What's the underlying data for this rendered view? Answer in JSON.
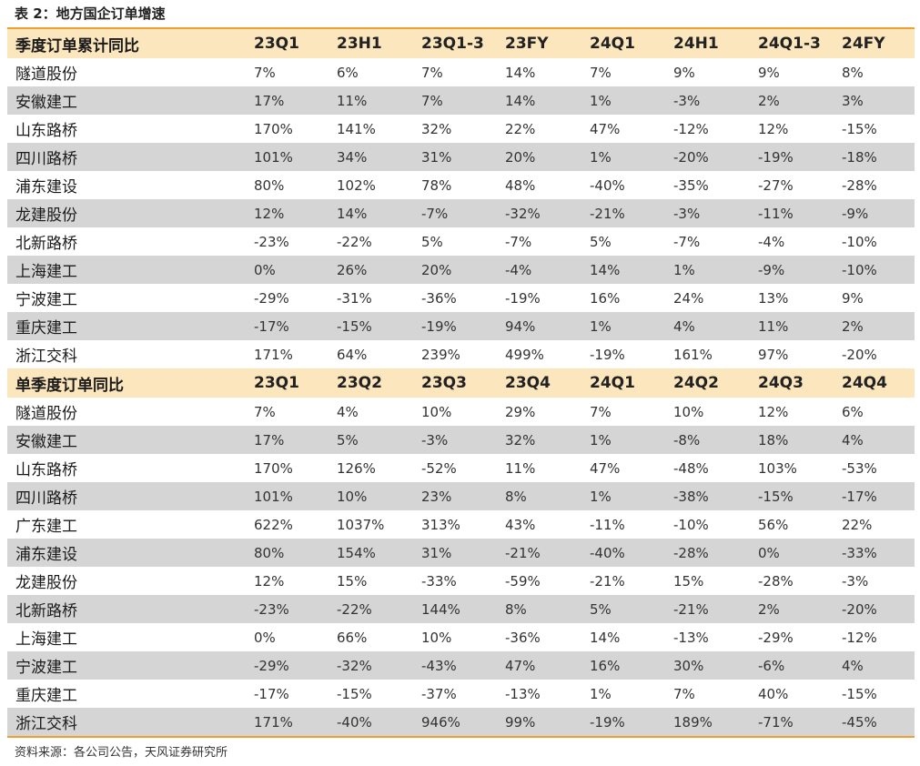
{
  "caption": "表 2：地方国企订单增速",
  "source": "资料来源：各公司公告，天风证券研究所",
  "sections": [
    {
      "header": [
        "季度订单累计同比",
        "23Q1",
        "23H1",
        "23Q1-3",
        "23FY",
        "24Q1",
        "24H1",
        "24Q1-3",
        "24FY"
      ],
      "rows": [
        [
          "隧道股份",
          "7%",
          "6%",
          "7%",
          "14%",
          "7%",
          "9%",
          "9%",
          "8%"
        ],
        [
          "安徽建工",
          "17%",
          "11%",
          "7%",
          "14%",
          "1%",
          "-3%",
          "2%",
          "3%"
        ],
        [
          "山东路桥",
          "170%",
          "141%",
          "32%",
          "22%",
          "47%",
          "-12%",
          "12%",
          "-15%"
        ],
        [
          "四川路桥",
          "101%",
          "34%",
          "31%",
          "20%",
          "1%",
          "-20%",
          "-19%",
          "-18%"
        ],
        [
          "浦东建设",
          "80%",
          "102%",
          "78%",
          "48%",
          "-40%",
          "-35%",
          "-27%",
          "-28%"
        ],
        [
          "龙建股份",
          "12%",
          "14%",
          "-7%",
          "-32%",
          "-21%",
          "-3%",
          "-11%",
          "-9%"
        ],
        [
          "北新路桥",
          "-23%",
          "-22%",
          "5%",
          "-7%",
          "5%",
          "-7%",
          "-4%",
          "-10%"
        ],
        [
          "上海建工",
          "0%",
          "26%",
          "20%",
          "-4%",
          "14%",
          "1%",
          "-9%",
          "-10%"
        ],
        [
          "宁波建工",
          "-29%",
          "-31%",
          "-36%",
          "-19%",
          "16%",
          "24%",
          "13%",
          "9%"
        ],
        [
          "重庆建工",
          "-17%",
          "-15%",
          "-19%",
          "94%",
          "1%",
          "4%",
          "11%",
          "2%"
        ],
        [
          "浙江交科",
          "171%",
          "64%",
          "239%",
          "499%",
          "-19%",
          "161%",
          "97%",
          "-20%"
        ]
      ]
    },
    {
      "header": [
        "单季度订单同比",
        "23Q1",
        "23Q2",
        "23Q3",
        "23Q4",
        "24Q1",
        "24Q2",
        "24Q3",
        "24Q4"
      ],
      "rows": [
        [
          "隧道股份",
          "7%",
          "4%",
          "10%",
          "29%",
          "7%",
          "10%",
          "12%",
          "6%"
        ],
        [
          "安徽建工",
          "17%",
          "5%",
          "-3%",
          "32%",
          "1%",
          "-8%",
          "18%",
          "4%"
        ],
        [
          "山东路桥",
          "170%",
          "126%",
          "-52%",
          "11%",
          "47%",
          "-48%",
          "103%",
          "-53%"
        ],
        [
          "四川路桥",
          "101%",
          "10%",
          "23%",
          "8%",
          "1%",
          "-38%",
          "-15%",
          "-17%"
        ],
        [
          "广东建工",
          "622%",
          "1037%",
          "313%",
          "43%",
          "-11%",
          "-10%",
          "56%",
          "22%"
        ],
        [
          "浦东建设",
          "80%",
          "154%",
          "31%",
          "-21%",
          "-40%",
          "-28%",
          "0%",
          "-33%"
        ],
        [
          "龙建股份",
          "12%",
          "15%",
          "-33%",
          "-59%",
          "-21%",
          "15%",
          "-28%",
          "-3%"
        ],
        [
          "北新路桥",
          "-23%",
          "-22%",
          "144%",
          "8%",
          "5%",
          "-21%",
          "2%",
          "-20%"
        ],
        [
          "上海建工",
          "0%",
          "66%",
          "10%",
          "-36%",
          "14%",
          "-13%",
          "-29%",
          "-12%"
        ],
        [
          "宁波建工",
          "-29%",
          "-32%",
          "-43%",
          "47%",
          "16%",
          "30%",
          "-6%",
          "4%"
        ],
        [
          "重庆建工",
          "-17%",
          "-15%",
          "-37%",
          "-13%",
          "1%",
          "7%",
          "40%",
          "-15%"
        ],
        [
          "浙江交科",
          "171%",
          "-40%",
          "946%",
          "99%",
          "-19%",
          "189%",
          "-71%",
          "-45%"
        ]
      ]
    }
  ]
}
